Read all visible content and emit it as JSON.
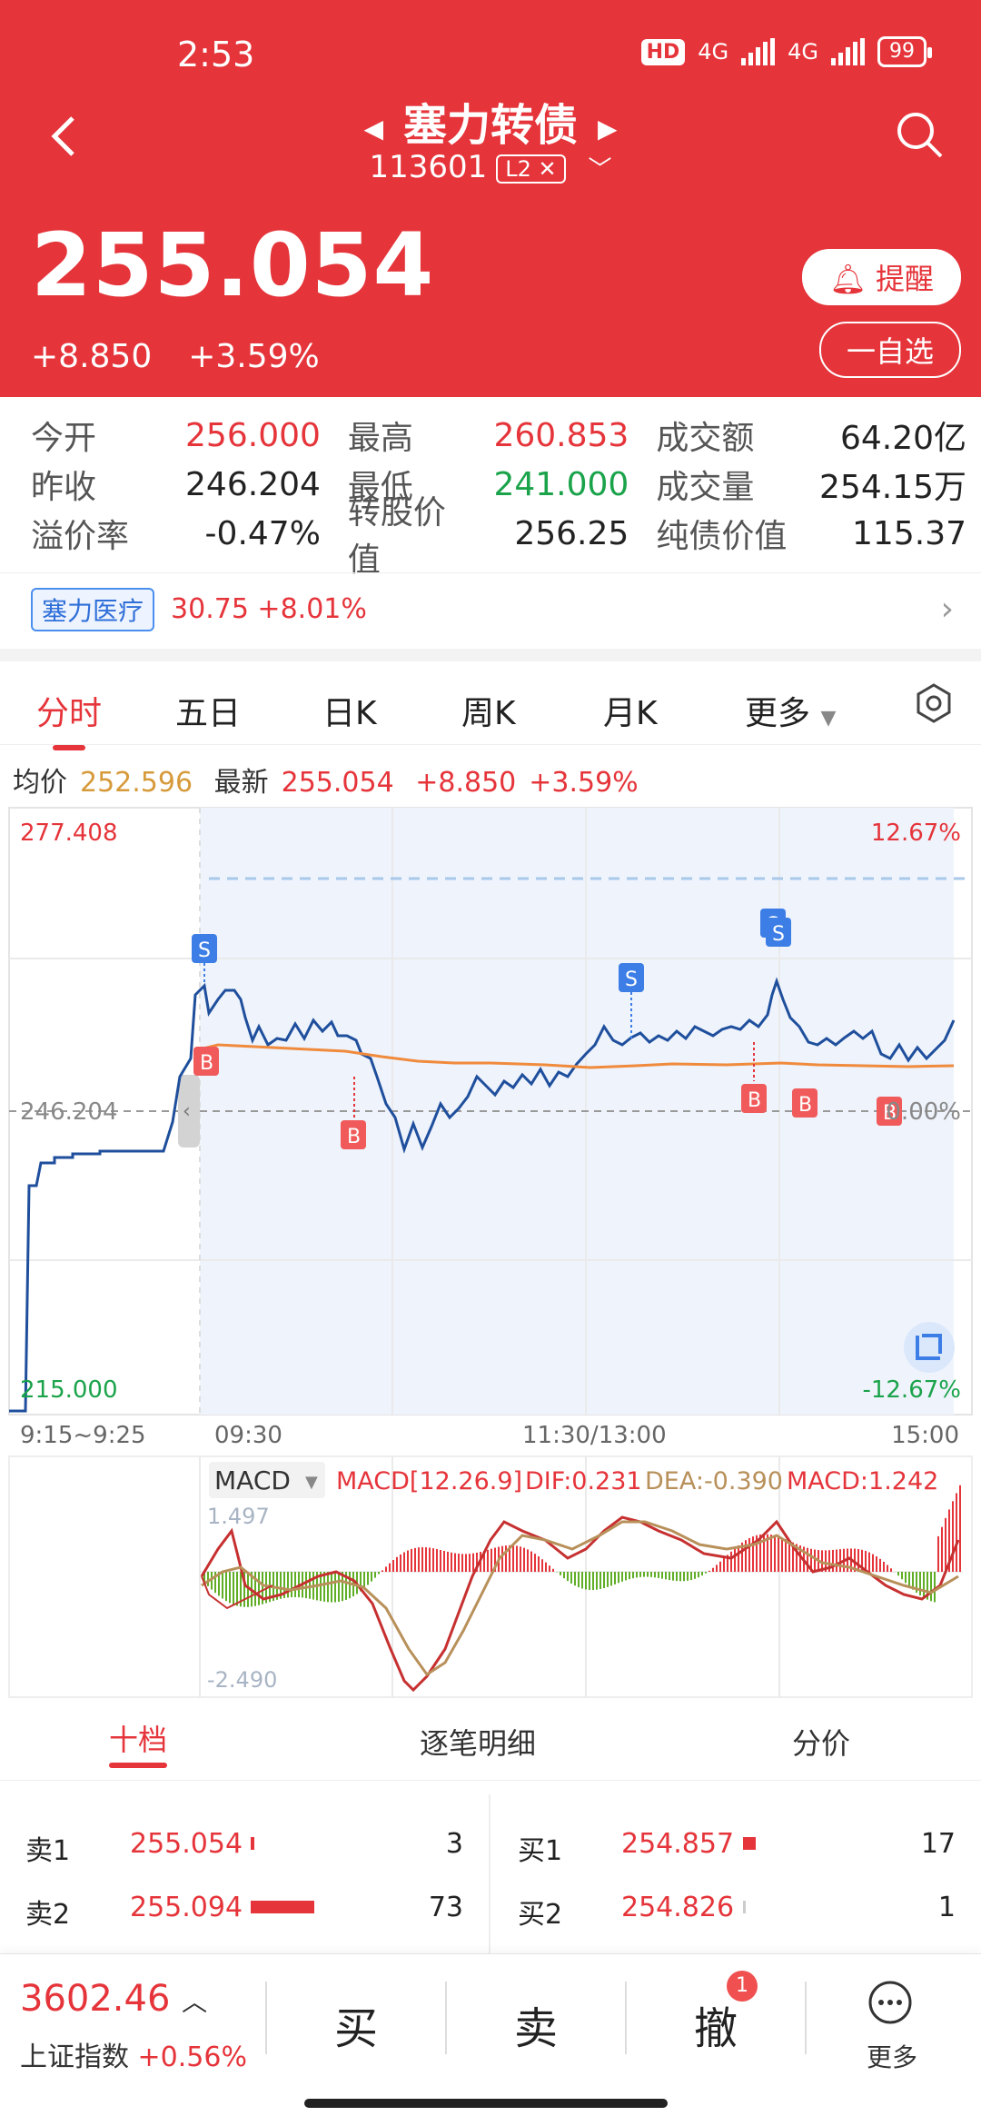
{
  "status": {
    "time": "2:53",
    "hd": "HD",
    "net1": "4G",
    "net2": "4G",
    "battery": "99"
  },
  "header": {
    "title": "塞力转债",
    "code": "113601",
    "l2": "L2",
    "price": "255.054",
    "change": "+8.850",
    "change_pct": "+3.59%",
    "alert_btn": "提醒",
    "watch_btn": "一自选"
  },
  "stats": {
    "rows": [
      {
        "l1": "今开",
        "v1": "256.000",
        "l2": "最高",
        "v2": "260.853",
        "l3": "成交额",
        "v3": "64.20亿"
      },
      {
        "l1": "昨收",
        "v1": "246.204",
        "l2": "最低",
        "v2": "241.000",
        "l3": "成交量",
        "v3": "254.15万"
      },
      {
        "l1": "溢价率",
        "v1": "-0.47%",
        "l2": "转股价值",
        "v2": "256.25",
        "l3": "纯债价值",
        "v3": "115.37"
      }
    ]
  },
  "related_stock": {
    "name": "塞力医疗",
    "info": "30.75 +8.01%"
  },
  "tabs": [
    "分时",
    "五日",
    "日K",
    "周K",
    "月K",
    "更多"
  ],
  "infobar": {
    "avg_label": "均价",
    "avg": "252.596",
    "last_label": "最新",
    "last": "255.054",
    "chg": "+8.850",
    "pct": "+3.59%"
  },
  "chart_data": {
    "type": "line",
    "y_left_top": "277.408",
    "y_left_mid": "246.204",
    "y_left_bottom": "215.000",
    "y_right_top": "12.67%",
    "y_right_mid": "0.00%",
    "y_right_bottom": "-12.67%",
    "x_labels": [
      "9:15~9:25",
      "09:30",
      "11:30/13:00",
      "15:00"
    ],
    "ylim": [
      215.0,
      277.408
    ],
    "series": [
      {
        "name": "price",
        "color": "#1f4f9c"
      },
      {
        "name": "avg",
        "color": "#f08a3c"
      }
    ],
    "markers": [
      "S",
      "B",
      "B",
      "S",
      "S",
      "S",
      "B",
      "B",
      "B"
    ]
  },
  "macd": {
    "label": "MACD",
    "params": "MACD[12.26.9]",
    "dif": "DIF:0.231",
    "dea": "DEA:-0.390",
    "macd": "MACD:1.242",
    "top": "1.497",
    "bottom": "-2.490"
  },
  "orderbook": {
    "tabs": [
      "十档",
      "逐笔明细",
      "分价"
    ],
    "sell": [
      {
        "label": "卖1",
        "price": "255.054",
        "vol": "3"
      },
      {
        "label": "卖2",
        "price": "255.094",
        "vol": "73"
      }
    ],
    "buy": [
      {
        "label": "买1",
        "price": "254.857",
        "vol": "17"
      },
      {
        "label": "买2",
        "price": "254.826",
        "vol": "1"
      }
    ]
  },
  "bottom": {
    "index_value": "3602.46",
    "index_name": "上证指数",
    "index_pct": "+0.56%",
    "buy": "买",
    "sell": "卖",
    "cancel": "撤",
    "cancel_badge": "1",
    "more": "更多"
  },
  "colors": {
    "brand": "#e5343a",
    "up": "#e5343a",
    "down": "#1aa34a",
    "line": "#1f4f9c",
    "avg": "#f08a3c"
  }
}
